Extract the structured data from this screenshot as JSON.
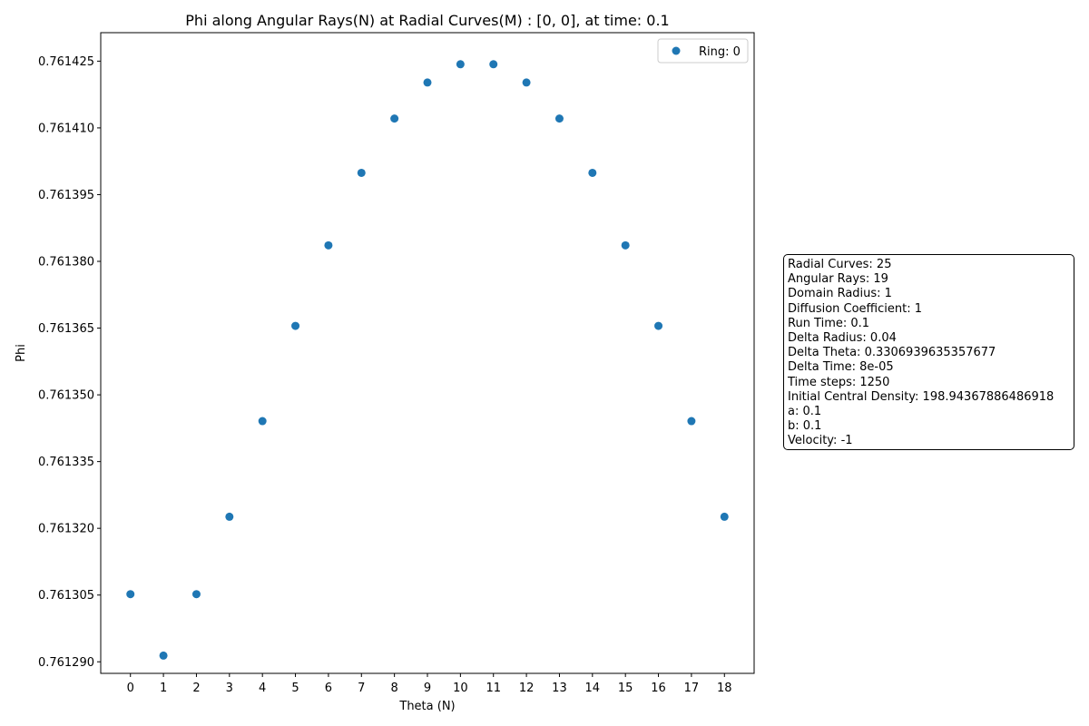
{
  "chart_data": {
    "type": "scatter",
    "title": "Phi along Angular Rays(N) at Radial Curves(M) : [0, 0], at time: 0.1",
    "xlabel": "Theta (N)",
    "ylabel": "Phi",
    "x": [
      0,
      1,
      2,
      3,
      4,
      5,
      6,
      7,
      8,
      9,
      10,
      11,
      12,
      13,
      14,
      15,
      16,
      17,
      18
    ],
    "series": [
      {
        "name": "Ring: 0",
        "color": "#1f77b4",
        "values": [
          0.7613052,
          0.7612914,
          0.7613052,
          0.7613226,
          0.7613441,
          0.7613655,
          0.7613836,
          0.7613999,
          0.7614121,
          0.7614202,
          0.7614243,
          0.7614243,
          0.7614202,
          0.7614121,
          0.7613999,
          0.7613836,
          0.7613655,
          0.7613441,
          0.7613226
        ]
      }
    ],
    "xlim": [
      -0.9,
      18.9
    ],
    "ylim": [
      0.7612874,
      0.7614314
    ],
    "xticks": [
      "0",
      "1",
      "2",
      "3",
      "4",
      "5",
      "6",
      "7",
      "8",
      "9",
      "10",
      "11",
      "12",
      "13",
      "14",
      "15",
      "16",
      "17",
      "18"
    ],
    "yticks": [
      {
        "value": 0.76129,
        "label": "0.761290"
      },
      {
        "value": 0.761305,
        "label": "0.761305"
      },
      {
        "value": 0.76132,
        "label": "0.761320"
      },
      {
        "value": 0.761335,
        "label": "0.761335"
      },
      {
        "value": 0.76135,
        "label": "0.761350"
      },
      {
        "value": 0.761365,
        "label": "0.761365"
      },
      {
        "value": 0.76138,
        "label": "0.761380"
      },
      {
        "value": 0.761395,
        "label": "0.761395"
      },
      {
        "value": 0.76141,
        "label": "0.761410"
      },
      {
        "value": 0.761425,
        "label": "0.761425"
      }
    ],
    "grid": false,
    "legend_position": "top-right"
  },
  "info_box": {
    "lines": [
      "Radial Curves: 25",
      "Angular Rays: 19",
      "Domain Radius: 1",
      "Diffusion Coefficient: 1",
      "Run Time: 0.1",
      "Delta Radius: 0.04",
      "Delta Theta: 0.3306939635357677",
      "Delta Time: 8e-05",
      "Time steps: 1250",
      "Initial Central Density: 198.94367886486918",
      "a: 0.1",
      "b: 0.1",
      "Velocity: -1"
    ]
  }
}
